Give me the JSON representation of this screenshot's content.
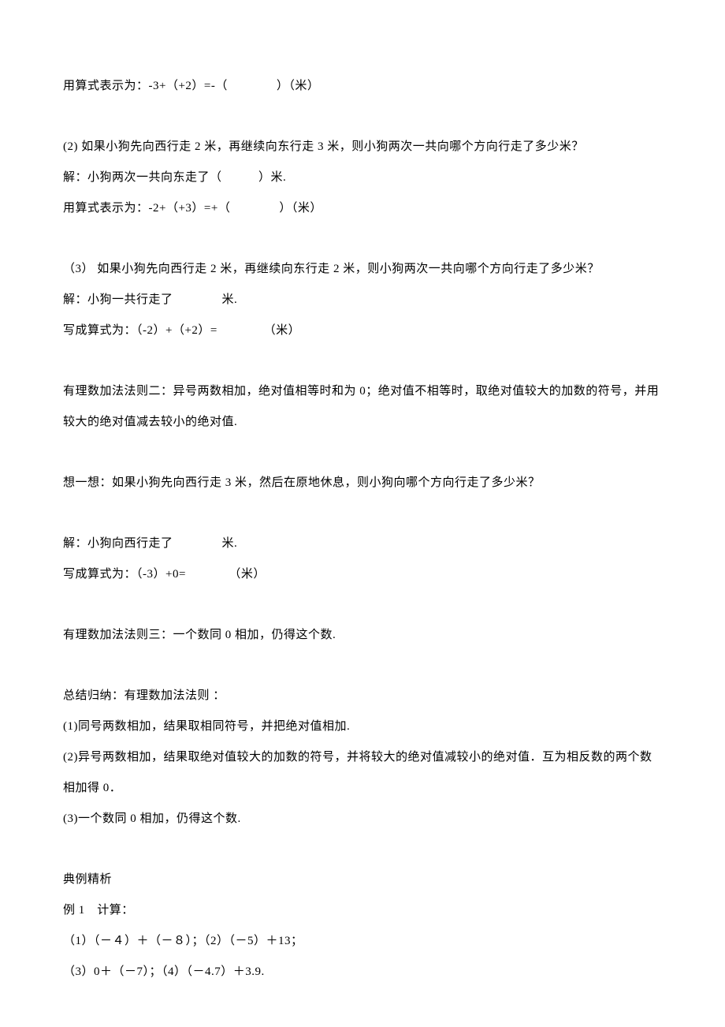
{
  "lines": {
    "l1": "用算式表示为：-3+（+2）=-（　　　　）（米）",
    "l2": "(2) 如果小狗先向西行走 2 米，再继续向东行走 3 米，则小狗两次一共向哪个方向行走了多少米？",
    "l3": "解：小狗两次一共向东走了（　　　）米.",
    "l4": "用算式表示为：-2+（+3）=+（　　　　）（米）",
    "l5": "（3） 如果小狗先向西行走 2 米，再继续向东行走 2 米，则小狗两次一共向哪个方向行走了多少米？",
    "l6": "解：小狗一共行走了　　　　米.",
    "l7": "写成算式为：（-2）+（+2）= 　　　　（米）",
    "l8": "有理数加法法则二：异号两数相加，绝对值相等时和为 0；绝对值不相等时，取绝对值较大的加数的符号，并用较大的绝对值减去较小的绝对值.",
    "l9": "想一想：如果小狗先向西行走 3 米，然后在原地休息，则小狗向哪个方向行走了多少米？",
    "l10": "解：小狗向西行走了　　　　米.",
    "l11": "写成算式为：（-3）+0=　　　　（米）",
    "l12": "有理数加法法则三：一个数同 0 相加，仍得这个数.",
    "l13": "总结归纳：有理数加法法则 ：",
    "l14": "(1)同号两数相加，结果取相同符号，并把绝对值相加.",
    "l15": "(2)异号两数相加，结果取绝对值较大的加数的符号，并将较大的绝对值减较小的绝对值．互为相反数的两个数相加得 0．",
    "l16": "(3)一个数同 0 相加，仍得这个数.",
    "l17": "典例精析",
    "l18": "例 1　计算：",
    "l19": "（1）（－４）＋（－８）；（2）（－5）＋13；",
    "l20": "（3）0＋（－7）；（4）（－4.7）＋3.9."
  }
}
